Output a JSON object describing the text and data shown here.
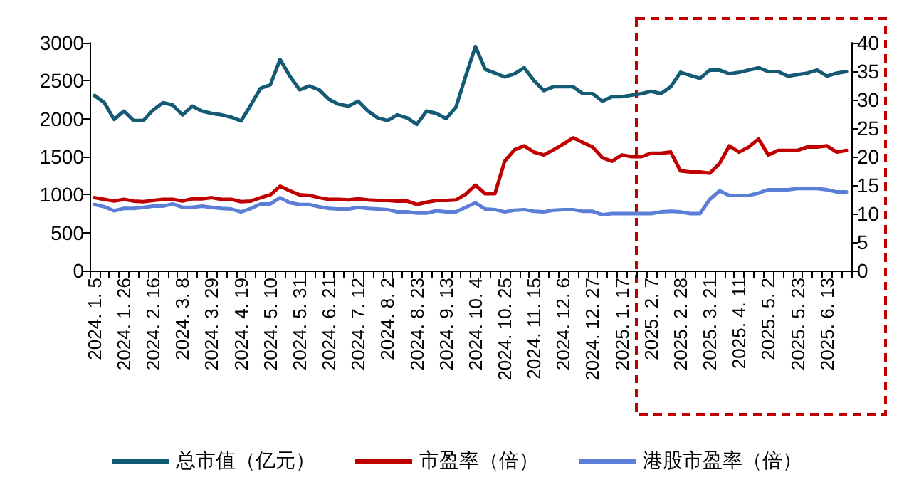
{
  "chart_data": {
    "type": "line",
    "categories": [
      "2024. 1. 5",
      null,
      null,
      "2024. 1. 26",
      null,
      null,
      "2024. 2. 16",
      null,
      null,
      "2024. 3. 8",
      null,
      null,
      "2024. 3. 29",
      null,
      null,
      "2024. 4. 19",
      null,
      null,
      "2024. 5. 10",
      null,
      null,
      "2024. 5. 31",
      null,
      null,
      "2024. 6. 21",
      null,
      null,
      "2024. 7. 12",
      null,
      null,
      "2024. 8. 2",
      null,
      null,
      "2024. 8. 23",
      null,
      null,
      "2024. 9. 13",
      null,
      null,
      "2024. 10. 4",
      null,
      null,
      "2024. 10. 25",
      null,
      null,
      "2024. 11. 15",
      null,
      null,
      "2024. 12. 6",
      null,
      null,
      "2024. 12. 27",
      null,
      null,
      "2025. 1. 17",
      null,
      null,
      "2025. 2. 7",
      null,
      null,
      "2025. 2. 28",
      null,
      null,
      "2025. 3. 21",
      null,
      null,
      "2025. 4. 11",
      null,
      null,
      "2025. 5. 2",
      null,
      null,
      "2025. 5. 23",
      null,
      null,
      "2025. 6. 13",
      null,
      null
    ],
    "series": [
      {
        "name": "总市值（亿元）",
        "color": "#145a74",
        "values": [
          2305,
          2210,
          1990,
          2100,
          1975,
          1975,
          2115,
          2210,
          2180,
          2050,
          2165,
          2100,
          2070,
          2050,
          2020,
          1970,
          2180,
          2400,
          2445,
          2780,
          2560,
          2380,
          2430,
          2380,
          2255,
          2190,
          2165,
          2230,
          2100,
          2010,
          1975,
          2050,
          2010,
          1925,
          2100,
          2070,
          2000,
          2150,
          2560,
          2950,
          2650,
          2600,
          2550,
          2590,
          2670,
          2500,
          2370,
          2420,
          2420,
          2420,
          2330,
          2330,
          2230,
          2290,
          2290,
          2310,
          2330,
          2360,
          2330,
          2420,
          2610,
          2570,
          2530,
          2640,
          2640,
          2590,
          2610,
          2640,
          2670,
          2620,
          2620,
          2560,
          2580,
          2600,
          2640,
          2560,
          2600,
          2620
        ]
      },
      {
        "name": "市盈率（倍）",
        "color": "#c00000",
        "axis": "y2",
        "values": [
          12.8,
          12.5,
          12.2,
          12.5,
          12.2,
          12.1,
          12.3,
          12.5,
          12.5,
          12.2,
          12.6,
          12.6,
          12.8,
          12.5,
          12.5,
          12.1,
          12.2,
          12.8,
          13.3,
          14.8,
          14.0,
          13.3,
          13.2,
          12.8,
          12.5,
          12.5,
          12.4,
          12.6,
          12.4,
          12.3,
          12.3,
          12.2,
          12.2,
          11.6,
          12.0,
          12.3,
          12.3,
          12.4,
          13.4,
          15.0,
          13.5,
          13.5,
          19.2,
          21.2,
          21.9,
          20.8,
          20.3,
          21.2,
          22.2,
          23.3,
          22.5,
          21.7,
          19.8,
          19.2,
          20.3,
          20.0,
          20.0,
          20.6,
          20.6,
          20.8,
          17.5,
          17.3,
          17.3,
          17.1,
          18.8,
          21.9,
          20.8,
          21.7,
          23.1,
          20.3,
          21.1,
          21.1,
          21.1,
          21.7,
          21.7,
          21.9,
          20.8,
          21.1
        ]
      },
      {
        "name": "港股市盈率（倍）",
        "color": "#5b7fd6",
        "axis": "y2",
        "values": [
          11.6,
          11.2,
          10.5,
          10.9,
          10.9,
          11.1,
          11.3,
          11.3,
          11.7,
          11.1,
          11.1,
          11.3,
          11.1,
          10.9,
          10.8,
          10.3,
          10.9,
          11.7,
          11.7,
          12.8,
          11.9,
          11.6,
          11.6,
          11.2,
          10.9,
          10.8,
          10.8,
          11.1,
          10.9,
          10.8,
          10.7,
          10.3,
          10.3,
          10.1,
          10.1,
          10.5,
          10.3,
          10.3,
          11.1,
          11.9,
          10.8,
          10.7,
          10.3,
          10.6,
          10.7,
          10.4,
          10.3,
          10.6,
          10.7,
          10.7,
          10.4,
          10.4,
          9.8,
          10.0,
          10.0,
          10.0,
          10.0,
          10.0,
          10.3,
          10.4,
          10.3,
          10.0,
          10.0,
          12.5,
          14.0,
          13.2,
          13.2,
          13.2,
          13.6,
          14.2,
          14.2,
          14.2,
          14.4,
          14.4,
          14.4,
          14.2,
          13.8,
          13.8
        ]
      }
    ],
    "ylim": [
      0,
      3000
    ],
    "yticks": [
      0,
      500,
      1000,
      1500,
      2000,
      2500,
      3000
    ],
    "y2lim": [
      0,
      40
    ],
    "y2ticks": [
      0,
      5,
      10,
      15,
      20,
      25,
      30,
      35,
      40
    ],
    "grid": false,
    "legend": "bottom",
    "marker": "none",
    "line_style": "solid"
  }
}
